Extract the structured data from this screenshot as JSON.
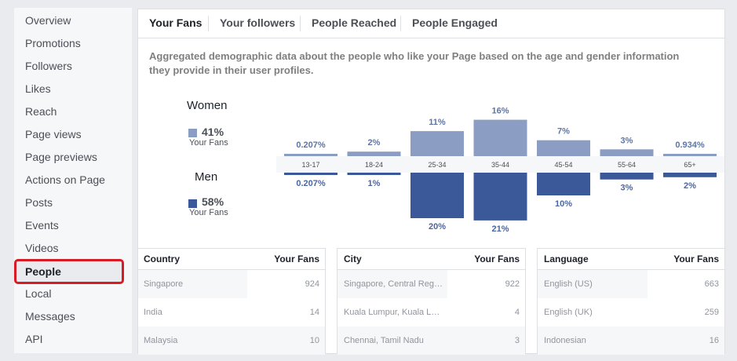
{
  "sidebar": {
    "items": [
      {
        "label": "Overview",
        "active": false
      },
      {
        "label": "Promotions",
        "active": false
      },
      {
        "label": "Followers",
        "active": false
      },
      {
        "label": "Likes",
        "active": false
      },
      {
        "label": "Reach",
        "active": false
      },
      {
        "label": "Page views",
        "active": false
      },
      {
        "label": "Page previews",
        "active": false
      },
      {
        "label": "Actions on Page",
        "active": false
      },
      {
        "label": "Posts",
        "active": false
      },
      {
        "label": "Events",
        "active": false
      },
      {
        "label": "Videos",
        "active": false
      },
      {
        "label": "People",
        "active": true
      },
      {
        "label": "Local",
        "active": false
      },
      {
        "label": "Messages",
        "active": false
      },
      {
        "label": "API",
        "active": false
      }
    ]
  },
  "tabs": [
    {
      "label": "Your Fans",
      "active": true
    },
    {
      "label": "Your followers",
      "active": false
    },
    {
      "label": "People Reached",
      "active": false
    },
    {
      "label": "People Engaged",
      "active": false
    }
  ],
  "description": "Aggregated demographic data about the people who like your Page based on the age and gender information they provide in their user profiles.",
  "legend": {
    "women": {
      "title": "Women",
      "pct": "41%",
      "sub": "Your Fans"
    },
    "men": {
      "title": "Men",
      "pct": "58%",
      "sub": "Your Fans"
    }
  },
  "colors": {
    "women": "#8b9dc3",
    "men": "#3b5998",
    "women_text": "#5d75a8",
    "men_text": "#4a67a3"
  },
  "chart_data": {
    "type": "bar",
    "categories": [
      "13-17",
      "18-24",
      "25-34",
      "35-44",
      "45-54",
      "55-64",
      "65+"
    ],
    "series": [
      {
        "name": "Women",
        "values": [
          0.207,
          2,
          11,
          16,
          7,
          3,
          0.934
        ],
        "labels": [
          "0.207%",
          "2%",
          "11%",
          "16%",
          "7%",
          "3%",
          "0.934%"
        ]
      },
      {
        "name": "Men",
        "values": [
          0.207,
          1,
          20,
          21,
          10,
          3,
          2
        ],
        "labels": [
          "0.207%",
          "1%",
          "20%",
          "21%",
          "10%",
          "3%",
          "2%"
        ]
      }
    ]
  },
  "tables": [
    {
      "header": [
        "Country",
        "Your Fans"
      ],
      "rows": [
        [
          "Singapore",
          "924"
        ],
        [
          "India",
          "14"
        ],
        [
          "Malaysia",
          "10"
        ]
      ]
    },
    {
      "header": [
        "City",
        "Your Fans"
      ],
      "rows": [
        [
          "Singapore, Central Reg…",
          "922"
        ],
        [
          "Kuala Lumpur, Kuala L…",
          "4"
        ],
        [
          "Chennai, Tamil Nadu",
          "3"
        ]
      ]
    },
    {
      "header": [
        "Language",
        "Your Fans"
      ],
      "rows": [
        [
          "English (US)",
          "663"
        ],
        [
          "English (UK)",
          "259"
        ],
        [
          "Indonesian",
          "16"
        ]
      ]
    }
  ]
}
